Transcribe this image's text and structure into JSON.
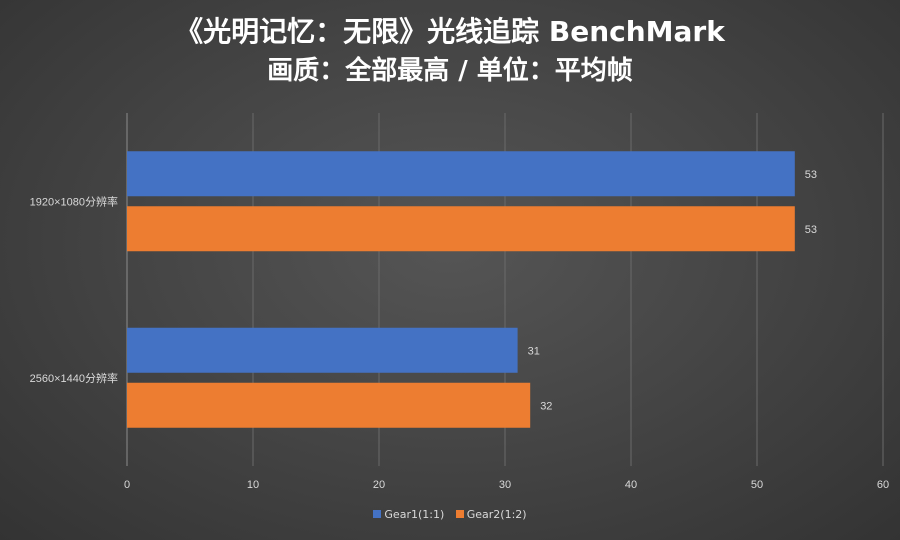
{
  "title_line1": "《光明记忆：无限》光线追踪 BenchMark",
  "title_line2": "画质：全部最高 / 单位：平均帧",
  "chart_data": {
    "type": "bar",
    "orientation": "horizontal",
    "categories": [
      "1920×1080分辨率",
      "2560×1440分辨率"
    ],
    "series": [
      {
        "name": "Gear1(1:1)",
        "values": [
          53,
          31
        ],
        "color": "#4472C4"
      },
      {
        "name": "Gear2(1:2)",
        "values": [
          53,
          32
        ],
        "color": "#ED7D31"
      }
    ],
    "xlim": [
      0,
      60
    ],
    "xticks": [
      0,
      10,
      20,
      30,
      40,
      50,
      60
    ],
    "grid": true,
    "legend_position": "bottom"
  }
}
